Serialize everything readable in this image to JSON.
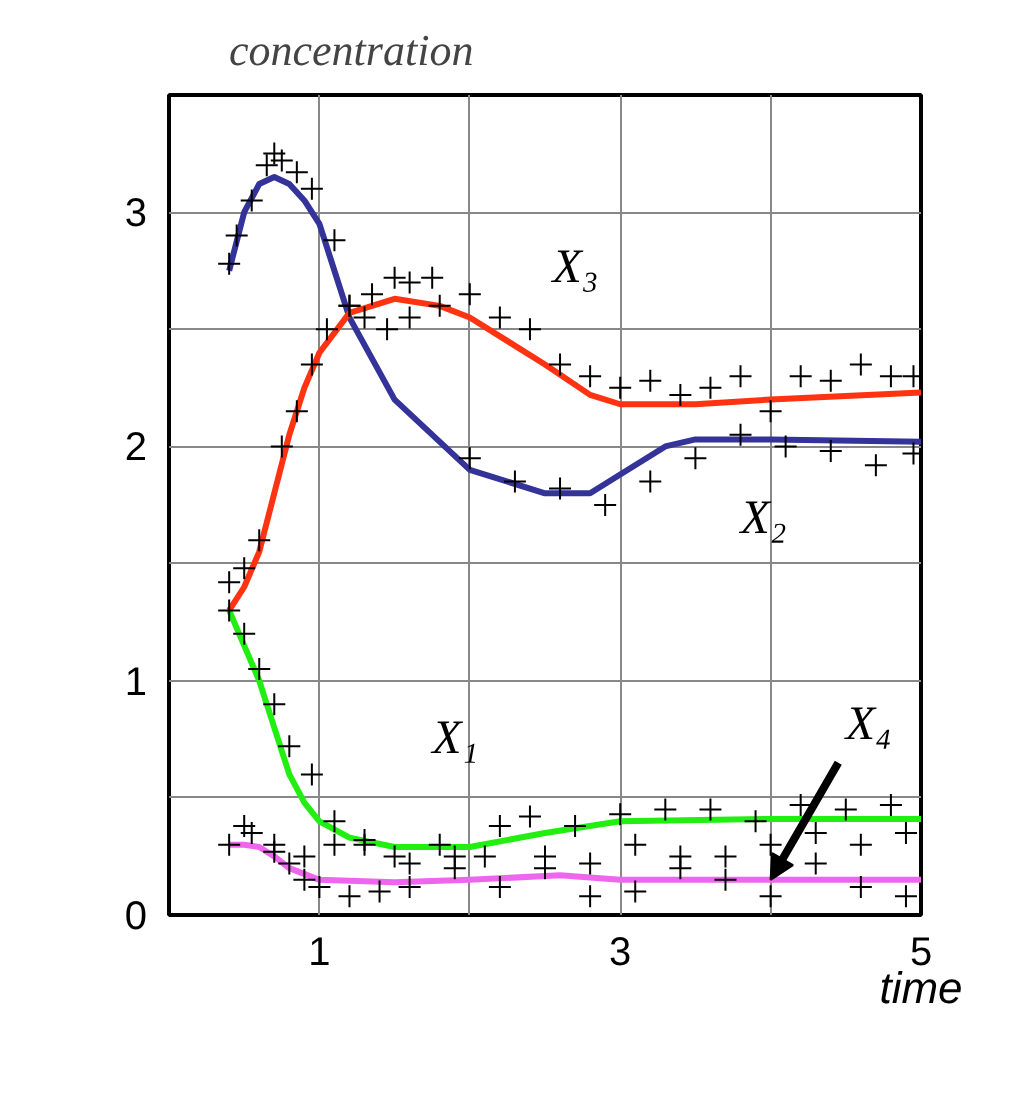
{
  "chart_data": {
    "type": "line",
    "xlabel": "time",
    "ylabel": "concentration",
    "xlim": [
      0,
      5
    ],
    "ylim": [
      0,
      3.5
    ],
    "xticks": [
      {
        "value": 0,
        "label": null
      },
      1,
      {
        "value": 2,
        "label": null
      },
      3,
      {
        "value": 4,
        "label": null
      },
      5
    ],
    "yticks": [
      0,
      {
        "value": 0.5,
        "label": null
      },
      1,
      {
        "value": 1.5,
        "label": null
      },
      2,
      {
        "value": 2.5,
        "label": null
      },
      3,
      {
        "value": 3.5,
        "label": null
      }
    ],
    "grid": true,
    "line_style": "solid",
    "series": [
      {
        "name": "X₁",
        "color": "#22ee11",
        "x": [
          0.4,
          0.5,
          0.6,
          0.7,
          0.8,
          0.9,
          1.0,
          1.2,
          1.5,
          2.0,
          2.5,
          3.0,
          4.0,
          5.0
        ],
        "values": [
          1.3,
          1.15,
          1.0,
          0.8,
          0.6,
          0.48,
          0.4,
          0.33,
          0.29,
          0.29,
          0.35,
          0.4,
          0.41,
          0.41
        ]
      },
      {
        "name": "X₂",
        "color": "#333399",
        "x": [
          0.4,
          0.5,
          0.6,
          0.7,
          0.8,
          0.9,
          1.0,
          1.1,
          1.2,
          1.5,
          2.0,
          2.5,
          2.8,
          3.0,
          3.3,
          3.5,
          4.0,
          5.0
        ],
        "values": [
          2.75,
          3.0,
          3.12,
          3.15,
          3.12,
          3.05,
          2.95,
          2.75,
          2.55,
          2.2,
          1.9,
          1.8,
          1.8,
          1.88,
          2.0,
          2.03,
          2.03,
          2.02
        ]
      },
      {
        "name": "X₃",
        "color": "#ff3311",
        "x": [
          0.4,
          0.5,
          0.6,
          0.7,
          0.8,
          0.9,
          1.0,
          1.2,
          1.5,
          1.8,
          2.0,
          2.5,
          2.8,
          3.0,
          3.5,
          4.0,
          5.0
        ],
        "values": [
          1.3,
          1.4,
          1.55,
          1.8,
          2.05,
          2.25,
          2.4,
          2.57,
          2.63,
          2.6,
          2.55,
          2.35,
          2.22,
          2.18,
          2.18,
          2.2,
          2.23
        ]
      },
      {
        "name": "X₄",
        "color": "#ee66ee",
        "x": [
          0.4,
          0.5,
          0.6,
          0.7,
          0.8,
          1.0,
          1.5,
          2.0,
          2.6,
          3.0,
          4.0,
          5.0
        ],
        "values": [
          0.3,
          0.3,
          0.29,
          0.25,
          0.2,
          0.15,
          0.14,
          0.15,
          0.17,
          0.15,
          0.15,
          0.15
        ]
      },
      {
        "type": "scatter",
        "marker": "cross",
        "color": "#000000",
        "x": [
          0.4,
          0.45,
          0.55,
          0.65,
          0.7,
          0.75,
          0.85,
          0.95,
          1.1,
          1.2,
          1.35,
          1.5,
          1.6,
          1.75,
          2.0,
          2.2,
          2.4,
          2.6,
          2.8,
          3.0,
          3.2,
          3.4,
          3.6,
          3.8,
          4.0,
          4.2,
          4.4,
          4.6,
          4.8,
          4.95,
          0.4,
          0.5,
          0.6,
          0.75,
          0.85,
          0.95,
          1.05,
          1.2,
          1.3,
          1.45,
          1.6,
          1.8,
          2.0,
          2.3,
          2.6,
          2.9,
          3.2,
          3.5,
          3.8,
          4.1,
          4.4,
          4.7,
          4.95,
          0.4,
          0.5,
          0.6,
          0.7,
          0.8,
          0.95,
          1.1,
          1.3,
          1.5,
          1.8,
          2.1,
          2.4,
          2.7,
          3.0,
          3.3,
          3.6,
          3.9,
          4.2,
          4.5,
          4.8,
          0.4,
          0.55,
          0.7,
          0.8,
          0.9,
          1.0,
          1.2,
          1.4,
          1.6,
          1.9,
          2.2,
          2.5,
          2.8,
          3.1,
          3.4,
          3.7,
          4.0,
          4.3,
          4.6,
          4.9,
          0.5,
          0.7,
          0.9,
          1.1,
          1.3,
          1.6,
          1.9,
          2.2,
          2.5,
          2.8,
          3.1,
          3.4,
          3.7,
          4.0,
          4.3,
          4.6,
          4.9
        ],
        "values": [
          2.78,
          2.9,
          3.05,
          3.2,
          3.25,
          3.22,
          3.17,
          3.1,
          2.88,
          2.6,
          2.65,
          2.72,
          2.7,
          2.72,
          2.65,
          2.55,
          2.5,
          2.35,
          2.3,
          2.25,
          2.28,
          2.22,
          2.25,
          2.3,
          2.15,
          2.3,
          2.28,
          2.35,
          2.3,
          2.3,
          1.42,
          1.48,
          1.6,
          2.0,
          2.15,
          2.35,
          2.5,
          2.6,
          2.55,
          2.5,
          2.55,
          2.6,
          1.95,
          1.85,
          1.82,
          1.75,
          1.85,
          1.95,
          2.05,
          2.0,
          1.98,
          1.92,
          1.97,
          1.3,
          1.2,
          1.05,
          0.9,
          0.72,
          0.6,
          0.4,
          0.32,
          0.25,
          0.3,
          0.25,
          0.42,
          0.38,
          0.43,
          0.45,
          0.45,
          0.4,
          0.47,
          0.45,
          0.47,
          0.3,
          0.35,
          0.3,
          0.22,
          0.15,
          0.12,
          0.08,
          0.1,
          0.12,
          0.2,
          0.12,
          0.2,
          0.08,
          0.1,
          0.2,
          0.15,
          0.08,
          0.22,
          0.12,
          0.08,
          0.38,
          0.27,
          0.25,
          0.3,
          0.3,
          0.22,
          0.25,
          0.38,
          0.25,
          0.22,
          0.3,
          0.25,
          0.25,
          0.3,
          0.35,
          0.3,
          0.35
        ]
      }
    ]
  }
}
